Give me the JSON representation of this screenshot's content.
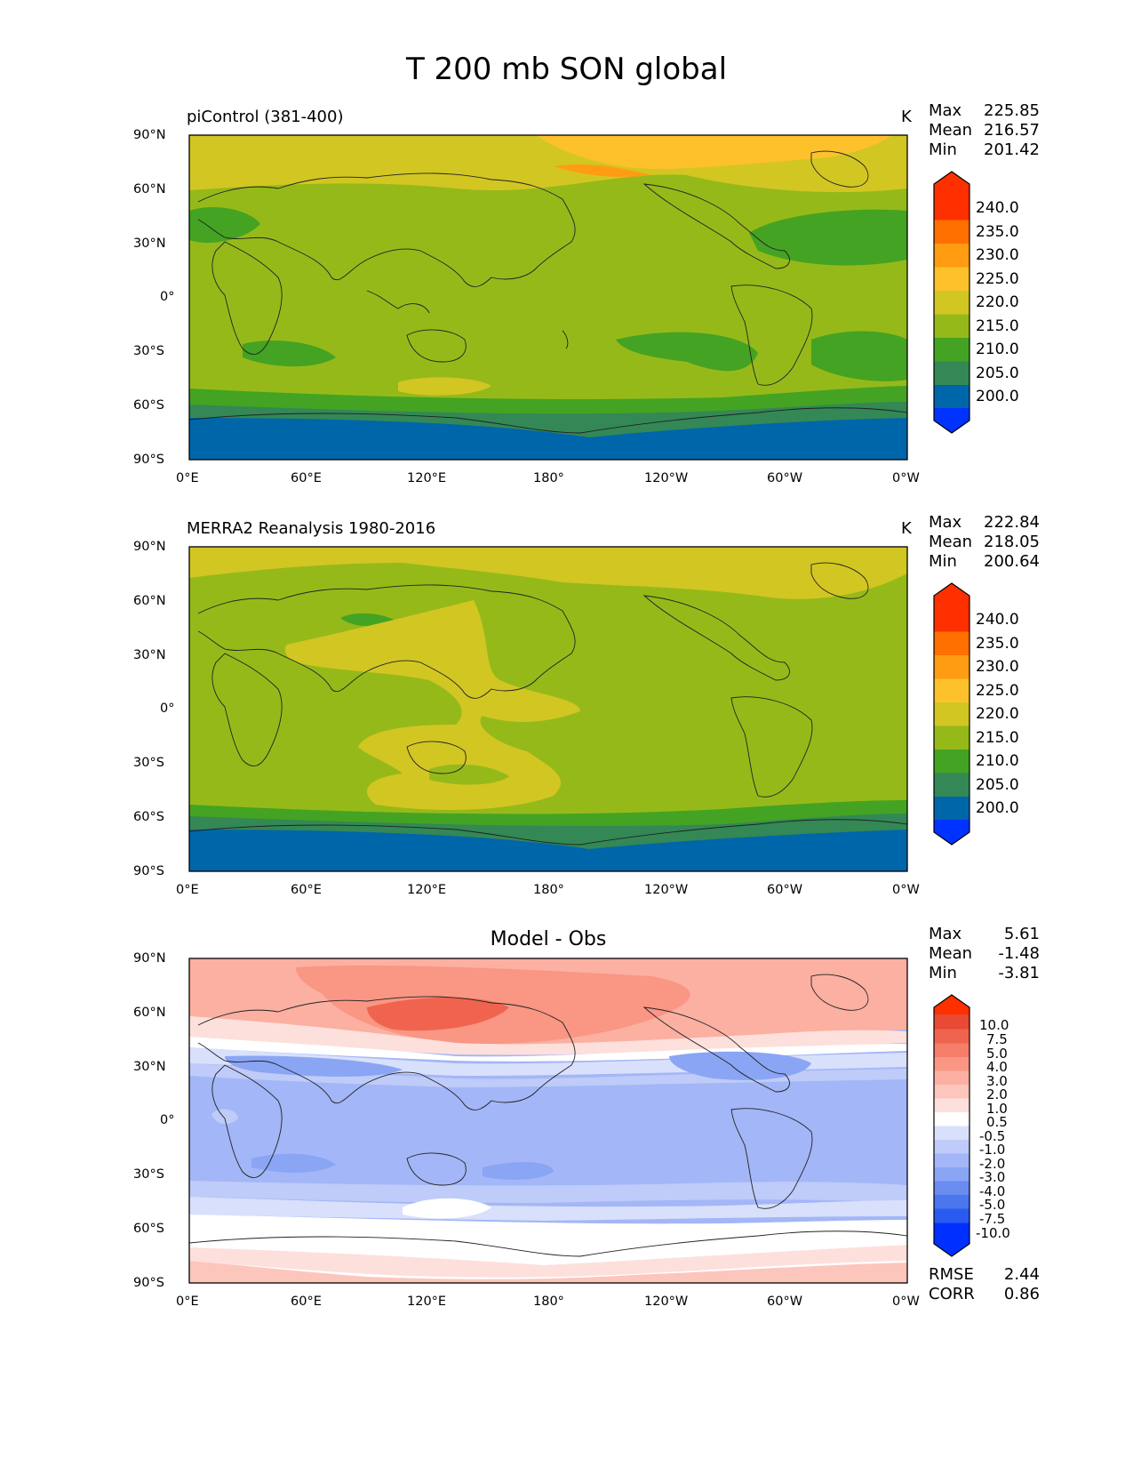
{
  "title": "T 200 mb SON global",
  "panels": [
    {
      "label": "piControl (381-400)",
      "units": "K",
      "stats": {
        "Max": "225.85",
        "Mean": "216.57",
        "Min": "201.42"
      },
      "colorbar_labels": [
        "240.0",
        "235.0",
        "230.0",
        "225.0",
        "220.0",
        "215.0",
        "210.0",
        "205.0",
        "200.0"
      ]
    },
    {
      "label": "MERRA2 Reanalysis 1980-2016",
      "units": "K",
      "stats": {
        "Max": "222.84",
        "Mean": "218.05",
        "Min": "200.64"
      },
      "colorbar_labels": [
        "240.0",
        "235.0",
        "230.0",
        "225.0",
        "220.0",
        "215.0",
        "210.0",
        "205.0",
        "200.0"
      ]
    },
    {
      "title": "Model - Obs",
      "stats": {
        "Max": "5.61",
        "Mean": "-1.48",
        "Min": "-3.81"
      },
      "colorbar_labels": [
        "10.0",
        "7.5",
        "5.0",
        "4.0",
        "3.0",
        "2.0",
        "1.0",
        "0.5",
        "-0.5",
        "-1.0",
        "-2.0",
        "-3.0",
        "-4.0",
        "-5.0",
        "-7.5",
        "-10.0"
      ],
      "metrics": {
        "RMSE": "2.44",
        "CORR": "0.86"
      }
    }
  ],
  "axes": {
    "lon_ticks": [
      "0°E",
      "60°E",
      "120°E",
      "180°",
      "120°W",
      "60°W",
      "0°W"
    ],
    "lat_ticks": [
      "90°N",
      "60°N",
      "30°N",
      "0°",
      "30°S",
      "60°S",
      "90°S"
    ]
  },
  "colors": {
    "temp_levels": [
      "#0033ff",
      "#0066aa",
      "#338855",
      "#44a322",
      "#96b91a",
      "#d2c623",
      "#fcc12b",
      "#ff9c12",
      "#ff7000",
      "#ff3000"
    ],
    "diff_levels": [
      "#0030ff",
      "#2a5bf0",
      "#4a76ee",
      "#6a8cf0",
      "#8aa5f4",
      "#a3b6f7",
      "#bfcbf8",
      "#d9e0fb",
      "#ffffff",
      "#fde0dc",
      "#fcc6bd",
      "#fbb0a2",
      "#f99684",
      "#f57d69",
      "#f0644f",
      "#e84a34",
      "#ff3000"
    ]
  }
}
